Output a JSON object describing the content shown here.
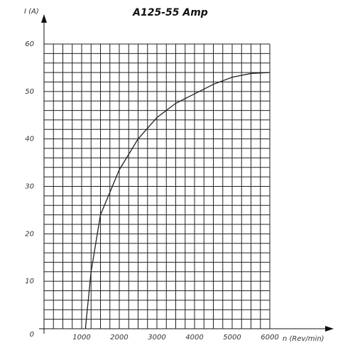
{
  "chart_data": {
    "type": "line",
    "title": "A125-55 Amp",
    "y_label": "I (A)",
    "x_label": "n (Rev/min)",
    "x": [
      1100,
      1250,
      1500,
      2000,
      2500,
      3000,
      3500,
      4000,
      4500,
      5000,
      5500,
      6000
    ],
    "series": [
      {
        "name": "A125-55",
        "color": "#222222",
        "values": [
          0,
          12,
          24,
          33.5,
          40,
          44.5,
          47.5,
          49.5,
          51.5,
          53,
          53.8,
          54
        ]
      }
    ],
    "xlim": [
      0,
      6000
    ],
    "ylim": [
      0,
      60
    ],
    "xticks": [
      1000,
      2000,
      3000,
      4000,
      5000,
      6000
    ],
    "yticks": [
      0,
      10,
      20,
      30,
      40,
      50,
      60
    ],
    "grid": true,
    "xgrid_step": 250,
    "ygrid_step": 2
  }
}
